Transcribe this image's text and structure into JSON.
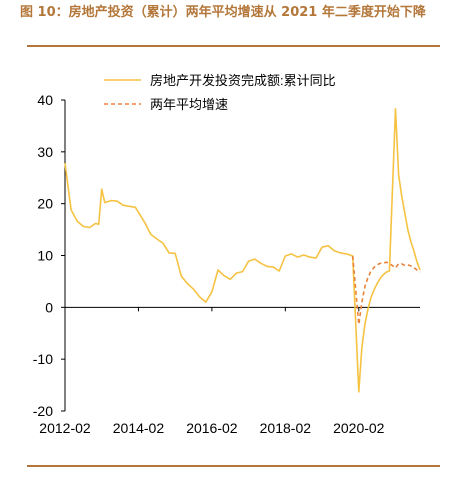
{
  "figure": {
    "title": "图 10：房地产投资（累计）两年平均增速从 2021 年二季度开始下降",
    "source": ""
  },
  "colors": {
    "accent": "#b4773a",
    "line1": "#f5c242",
    "line2": "#e8823a"
  },
  "chart_data": {
    "type": "line",
    "title": "",
    "xlabel": "",
    "ylabel": "",
    "ylim": [
      -20,
      40
    ],
    "y_ticks": [
      -20,
      -10,
      0,
      10,
      20,
      30,
      40
    ],
    "x_ticks": [
      "2012-02",
      "2014-02",
      "2016-02",
      "2018-02",
      "2020-02"
    ],
    "legend_position": "top",
    "grid": false,
    "series": [
      {
        "name": "房地产开发投资完成额:累计同比",
        "style": "solid",
        "color": "#f5c242",
        "points": [
          [
            "2012-02",
            27.8
          ],
          [
            "2012-04",
            18.8
          ],
          [
            "2012-06",
            16.6
          ],
          [
            "2012-08",
            15.6
          ],
          [
            "2012-10",
            15.4
          ],
          [
            "2012-12",
            16.2
          ],
          [
            "2013-01",
            16.0
          ],
          [
            "2013-02",
            22.8
          ],
          [
            "2013-03",
            20.2
          ],
          [
            "2013-05",
            20.6
          ],
          [
            "2013-07",
            20.5
          ],
          [
            "2013-09",
            19.7
          ],
          [
            "2013-11",
            19.5
          ],
          [
            "2014-01",
            19.3
          ],
          [
            "2014-04",
            16.4
          ],
          [
            "2014-06",
            14.1
          ],
          [
            "2014-08",
            13.2
          ],
          [
            "2014-10",
            12.4
          ],
          [
            "2014-12",
            10.5
          ],
          [
            "2015-02",
            10.4
          ],
          [
            "2015-04",
            6.0
          ],
          [
            "2015-06",
            4.6
          ],
          [
            "2015-08",
            3.5
          ],
          [
            "2015-10",
            2.0
          ],
          [
            "2015-12",
            1.0
          ],
          [
            "2016-02",
            3.0
          ],
          [
            "2016-04",
            7.2
          ],
          [
            "2016-06",
            6.1
          ],
          [
            "2016-08",
            5.4
          ],
          [
            "2016-10",
            6.6
          ],
          [
            "2016-12",
            6.9
          ],
          [
            "2017-02",
            8.9
          ],
          [
            "2017-04",
            9.3
          ],
          [
            "2017-06",
            8.5
          ],
          [
            "2017-08",
            7.9
          ],
          [
            "2017-10",
            7.8
          ],
          [
            "2017-12",
            7.0
          ],
          [
            "2018-02",
            9.9
          ],
          [
            "2018-04",
            10.3
          ],
          [
            "2018-06",
            9.7
          ],
          [
            "2018-08",
            10.1
          ],
          [
            "2018-10",
            9.7
          ],
          [
            "2018-12",
            9.5
          ],
          [
            "2019-02",
            11.6
          ],
          [
            "2019-04",
            11.9
          ],
          [
            "2019-06",
            10.9
          ],
          [
            "2019-08",
            10.5
          ],
          [
            "2019-10",
            10.3
          ],
          [
            "2019-12",
            9.9
          ],
          [
            "2020-02",
            -16.3
          ],
          [
            "2020-03",
            -7.7
          ],
          [
            "2020-04",
            -3.3
          ],
          [
            "2020-05",
            -0.3
          ],
          [
            "2020-06",
            1.9
          ],
          [
            "2020-07",
            3.4
          ],
          [
            "2020-08",
            4.6
          ],
          [
            "2020-09",
            5.6
          ],
          [
            "2020-10",
            6.3
          ],
          [
            "2020-11",
            6.8
          ],
          [
            "2020-12",
            7.0
          ],
          [
            "2021-02",
            38.3
          ],
          [
            "2021-03",
            25.6
          ],
          [
            "2021-04",
            21.6
          ],
          [
            "2021-05",
            18.3
          ],
          [
            "2021-06",
            15.0
          ],
          [
            "2021-07",
            12.7
          ],
          [
            "2021-08",
            10.9
          ],
          [
            "2021-09",
            8.8
          ],
          [
            "2021-10",
            7.2
          ]
        ]
      },
      {
        "name": "两年平均增速",
        "style": "dashed",
        "color": "#e8823a",
        "points": [
          [
            "2019-12",
            9.9
          ],
          [
            "2020-02",
            -3.3
          ],
          [
            "2020-03",
            1.0
          ],
          [
            "2020-04",
            4.0
          ],
          [
            "2020-05",
            5.8
          ],
          [
            "2020-06",
            7.0
          ],
          [
            "2020-07",
            7.7
          ],
          [
            "2020-08",
            8.2
          ],
          [
            "2020-09",
            8.5
          ],
          [
            "2020-10",
            8.5
          ],
          [
            "2020-11",
            8.7
          ],
          [
            "2020-12",
            8.5
          ],
          [
            "2021-02",
            7.6
          ],
          [
            "2021-03",
            8.4
          ],
          [
            "2021-04",
            8.4
          ],
          [
            "2021-05",
            8.1
          ],
          [
            "2021-06",
            8.2
          ],
          [
            "2021-07",
            8.0
          ],
          [
            "2021-08",
            7.7
          ],
          [
            "2021-09",
            7.2
          ],
          [
            "2021-10",
            6.8
          ]
        ]
      }
    ]
  }
}
